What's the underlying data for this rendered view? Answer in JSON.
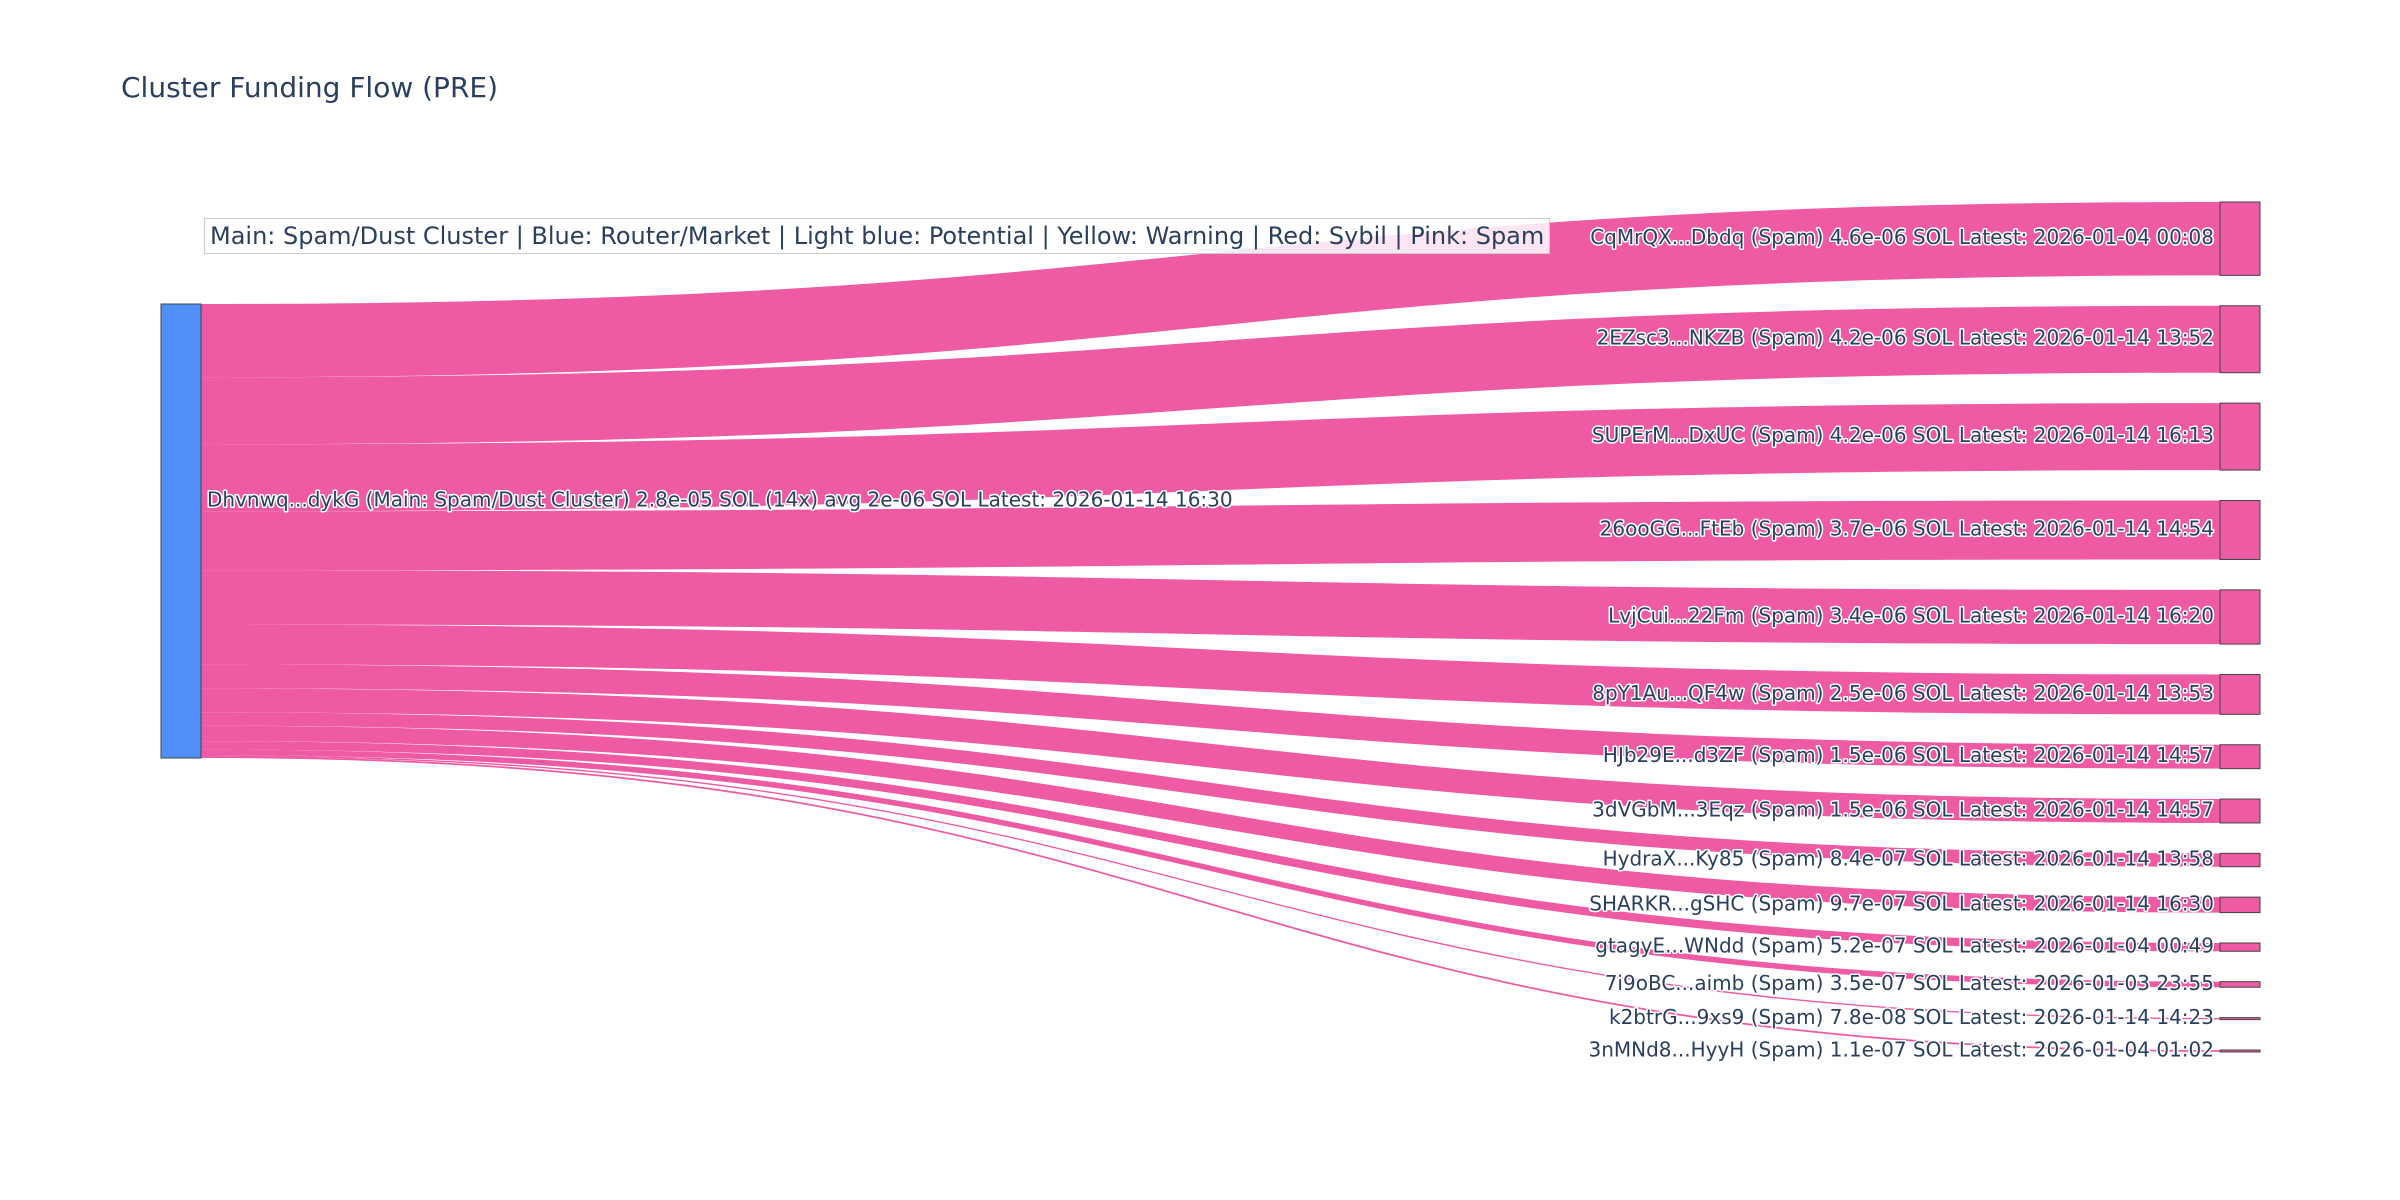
{
  "title": "Cluster Funding Flow (PRE)",
  "legend": "Main: Spam/Dust Cluster  |  Blue: Router/Market | Light blue: Potential | Yellow: Warning | Red: Sybil | Pink: Spam",
  "colors": {
    "source_node": "#4f8ff7",
    "target_node": "#ee5aa3",
    "link": "#ee5aa3",
    "node_border": "#444444",
    "text": "#2a3f5f"
  },
  "chart_data": {
    "type": "sankey",
    "source": {
      "label": "Dhvnwq...dykG (Main: Spam/Dust Cluster) 2.8e-05 SOL (14x) avg 2e-06 SOL Latest: 2026-01-14 16:30",
      "value": 2.8e-05,
      "count": 14
    },
    "targets": [
      {
        "label": "CqMrQX...Dbdq (Spam) 4.6e-06 SOL Latest: 2026-01-04 00:08",
        "value": 4.6e-06
      },
      {
        "label": "2EZsc3...NKZB (Spam) 4.2e-06 SOL Latest: 2026-01-14 13:52",
        "value": 4.2e-06
      },
      {
        "label": "SUPErM...DxUC (Spam) 4.2e-06 SOL Latest: 2026-01-14 16:13",
        "value": 4.2e-06
      },
      {
        "label": "26ooGG...FtEb (Spam) 3.7e-06 SOL Latest: 2026-01-14 14:54",
        "value": 3.7e-06
      },
      {
        "label": "LvjCui...22Fm (Spam) 3.4e-06 SOL Latest: 2026-01-14 16:20",
        "value": 3.4e-06
      },
      {
        "label": "8pY1Au...QF4w (Spam) 2.5e-06 SOL Latest: 2026-01-14 13:53",
        "value": 2.5e-06
      },
      {
        "label": "HJb29E...d3ZF (Spam) 1.5e-06 SOL Latest: 2026-01-14 14:57",
        "value": 1.5e-06
      },
      {
        "label": "3dVGbM...3Eqz (Spam) 1.5e-06 SOL Latest: 2026-01-14 14:57",
        "value": 1.5e-06
      },
      {
        "label": "HydraX...Ky85 (Spam) 8.4e-07 SOL Latest: 2026-01-14 13:58",
        "value": 8.4e-07
      },
      {
        "label": "SHARKR...gSHC (Spam) 9.7e-07 SOL Latest: 2026-01-14 16:30",
        "value": 9.7e-07
      },
      {
        "label": "gtagyE...WNdd (Spam) 5.2e-07 SOL Latest: 2026-01-04 00:49",
        "value": 5.2e-07
      },
      {
        "label": "7i9oBC...aimb (Spam) 3.5e-07 SOL Latest: 2026-01-03 23:55",
        "value": 3.5e-07
      },
      {
        "label": "k2btrG...9xs9 (Spam) 7.8e-08 SOL Latest: 2026-01-14 14:23",
        "value": 7.8e-08
      },
      {
        "label": "3nMNd8...HyyH (Spam) 1.1e-07 SOL Latest: 2026-01-04 01:02",
        "value": 1.1e-07
      }
    ]
  }
}
